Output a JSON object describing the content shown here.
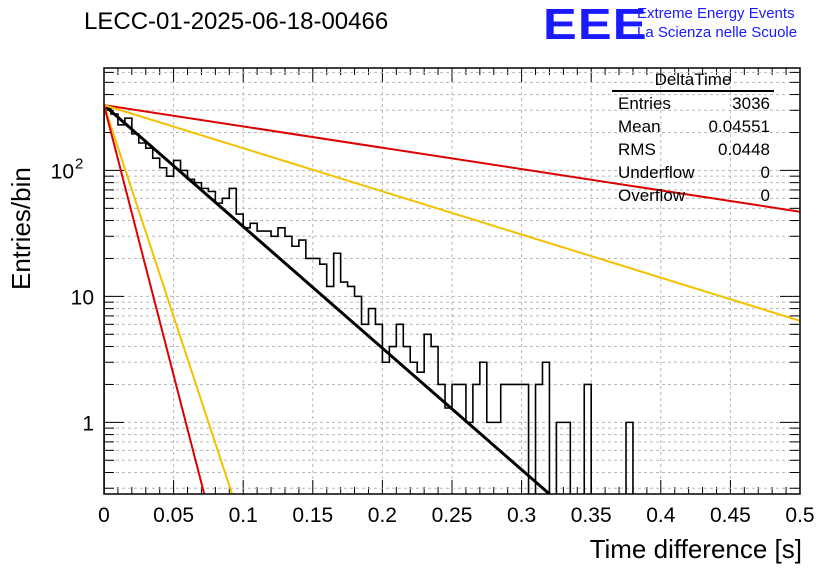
{
  "header": {
    "title": "LECC-01-2025-06-18-00466",
    "logo": "EEE",
    "logo_line1": "Extreme Energy Events",
    "logo_line2": "La Scienza nelle Scuole"
  },
  "stats": {
    "name": "DeltaTime",
    "rows": [
      {
        "label": "Entries",
        "value": "3036"
      },
      {
        "label": "Mean",
        "value": "0.04551"
      },
      {
        "label": "RMS",
        "value": "0.0448"
      },
      {
        "label": "Underflow",
        "value": "0"
      },
      {
        "label": "Overflow",
        "value": "0"
      }
    ]
  },
  "chart_data": {
    "type": "histogram",
    "xlabel": "Time difference [s]",
    "ylabel": "Entries/bin",
    "xlim": [
      0,
      0.5
    ],
    "ylim": [
      0.27,
      650
    ],
    "yscale": "log",
    "grid": true,
    "x_ticks": [
      "0",
      "0.05",
      "0.1",
      "0.15",
      "0.2",
      "0.25",
      "0.3",
      "0.35",
      "0.4",
      "0.45",
      "0.5"
    ],
    "y_ticks": [
      "1",
      "10",
      "10^2"
    ],
    "bin_width": 0.005,
    "histogram_values": [
      310,
      280,
      230,
      260,
      195,
      165,
      150,
      125,
      105,
      90,
      120,
      100,
      85,
      80,
      72,
      68,
      55,
      60,
      72,
      45,
      35,
      38,
      33,
      33,
      30,
      35,
      30,
      25,
      28,
      20,
      20,
      18,
      12,
      22,
      13,
      12,
      10,
      6,
      8,
      6,
      3,
      4,
      6,
      4,
      3,
      2.5,
      5,
      4,
      2,
      1.3,
      2,
      2,
      1,
      2,
      3,
      1,
      1,
      2,
      2,
      2,
      2,
      0,
      2,
      3,
      0,
      1,
      1,
      0,
      0,
      2,
      0,
      0,
      0,
      0,
      0,
      1,
      0,
      0,
      0,
      0,
      0,
      0,
      0,
      0,
      0,
      0,
      0,
      0,
      0,
      0,
      0,
      0,
      0,
      0,
      0,
      0,
      0,
      0,
      0,
      0
    ],
    "fit_lines": [
      {
        "color": "#000000",
        "x": [
          0,
          0.32
        ],
        "y": [
          330,
          0.27
        ]
      },
      {
        "color": "#dd0000",
        "x": [
          0,
          0.5
        ],
        "y": [
          330,
          47
        ]
      },
      {
        "color": "#f2c200",
        "x": [
          0,
          0.5
        ],
        "y": [
          330,
          6.4
        ]
      },
      {
        "color": "#f2c200",
        "x": [
          0,
          0.092
        ],
        "y": [
          330,
          0.27
        ]
      },
      {
        "color": "#dd0000",
        "x": [
          0,
          0.072
        ],
        "y": [
          330,
          0.27
        ]
      }
    ]
  }
}
